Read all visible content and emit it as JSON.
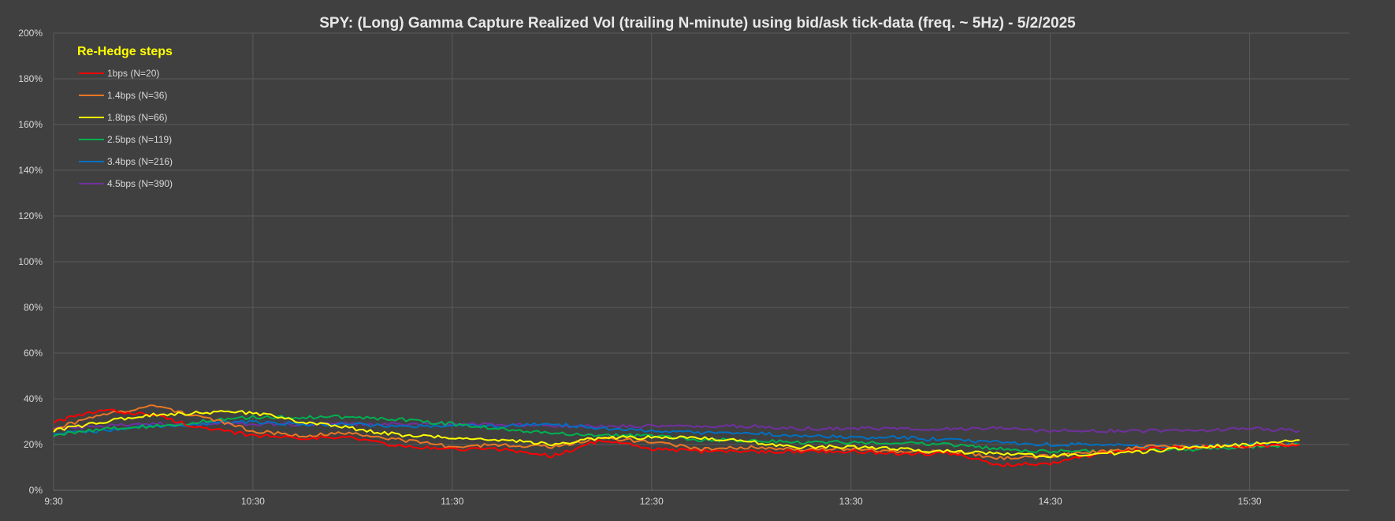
{
  "chart_data": {
    "type": "line",
    "title": "SPY: (Long) Gamma Capture Realized Vol (trailing N-minute) using bid/ask tick-data (freq. ~ 5Hz) - 5/2/2025",
    "xlabel": "",
    "ylabel": "",
    "x_ticks": [
      "9:30",
      "10:30",
      "11:30",
      "12:30",
      "13:30",
      "14:30",
      "15:30"
    ],
    "y_ticks": [
      "0%",
      "20%",
      "40%",
      "60%",
      "80%",
      "100%",
      "120%",
      "140%",
      "160%",
      "180%",
      "200%"
    ],
    "ylim": [
      0,
      200
    ],
    "grid": true,
    "legend_title": "Re-Hedge steps",
    "legend_placement": "top-left",
    "x": [
      "9:30",
      "9:45",
      "10:00",
      "10:15",
      "10:30",
      "10:45",
      "11:00",
      "11:15",
      "11:30",
      "11:45",
      "12:00",
      "12:15",
      "12:30",
      "12:45",
      "13:00",
      "13:15",
      "13:30",
      "13:45",
      "14:00",
      "14:15",
      "14:30",
      "14:45",
      "15:00",
      "15:15",
      "15:30",
      "15:45"
    ],
    "series": [
      {
        "name": "1bps  (N=20)",
        "color": "#ff0000",
        "values": [
          30,
          35,
          33,
          27,
          24,
          23,
          23,
          19,
          18,
          18,
          15,
          22,
          18,
          17,
          17,
          17,
          17,
          16,
          16,
          11,
          12,
          16,
          18,
          19,
          19,
          20
        ]
      },
      {
        "name": "1.4bps  (N=36)",
        "color": "#e97625",
        "values": [
          27,
          33,
          37,
          32,
          26,
          24,
          25,
          22,
          19,
          20,
          19,
          23,
          21,
          18,
          19,
          18,
          18,
          17,
          17,
          14,
          15,
          17,
          19,
          19,
          19,
          20
        ]
      },
      {
        "name": "1.8bps  (N=66)",
        "color": "#ffff00",
        "values": [
          26,
          30,
          33,
          34,
          34,
          30,
          27,
          24,
          23,
          22,
          20,
          23,
          23,
          23,
          21,
          19,
          19,
          18,
          17,
          16,
          15,
          16,
          17,
          19,
          20,
          22
        ]
      },
      {
        "name": "2.5bps  (N=119)",
        "color": "#00b050",
        "values": [
          24,
          27,
          28,
          30,
          32,
          32,
          32,
          31,
          29,
          27,
          25,
          24,
          24,
          22,
          22,
          21,
          21,
          21,
          20,
          18,
          17,
          17,
          18,
          18,
          19,
          20
        ]
      },
      {
        "name": "3.4bps  (N=216)",
        "color": "#0070c0",
        "values": [
          25,
          26,
          28,
          29,
          30,
          29,
          29,
          28,
          28,
          28,
          29,
          27,
          26,
          25,
          25,
          24,
          23,
          23,
          22,
          21,
          20,
          20,
          19,
          19,
          20,
          20
        ]
      },
      {
        "name": "4.5bps  (N=390)",
        "color": "#7030a0",
        "values": [
          27,
          28,
          29,
          29,
          29,
          29,
          29,
          29,
          29,
          29,
          28,
          28,
          28,
          28,
          28,
          27,
          27,
          27,
          27,
          27,
          26,
          26,
          26,
          26,
          27,
          26
        ]
      }
    ]
  }
}
